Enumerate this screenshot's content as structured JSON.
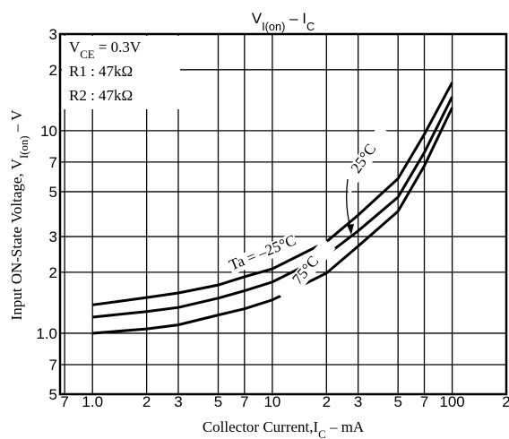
{
  "chart_data": {
    "type": "line",
    "title": [
      {
        "text": "V"
      },
      {
        "text": "I(on)",
        "sub": true
      },
      {
        "text": "  –  I"
      },
      {
        "text": "C",
        "sub": true
      }
    ],
    "xlabel": [
      {
        "text": "Collector Current,I"
      },
      {
        "text": "C",
        "sub": true
      },
      {
        "text": " – mA"
      }
    ],
    "ylabel": [
      {
        "text": "Input ON-State Voltage, V"
      },
      {
        "text": "I(on)",
        "sub": true
      },
      {
        "text": " – V"
      }
    ],
    "annotations": [
      [
        {
          "text": "V"
        },
        {
          "text": "CE",
          "sub": true
        },
        {
          "text": " = 0.3V"
        }
      ],
      [
        {
          "text": "R1 : 47kΩ"
        }
      ],
      [
        {
          "text": "R2 : 47kΩ"
        }
      ]
    ],
    "x": [
      1,
      2,
      3,
      5,
      7,
      10,
      20,
      30,
      50,
      70,
      100
    ],
    "series": [
      {
        "name": "Ta = –25°C",
        "color": "#000000",
        "values": [
          1.38,
          1.5,
          1.58,
          1.73,
          1.9,
          2.08,
          2.83,
          3.83,
          5.8,
          9.6,
          17.3
        ]
      },
      {
        "name": "25°C",
        "color": "#000000",
        "values": [
          1.2,
          1.28,
          1.34,
          1.49,
          1.62,
          1.79,
          2.43,
          3.2,
          4.7,
          7.8,
          14.7
        ]
      },
      {
        "name": "75°C",
        "color": "#000000",
        "values": [
          1.0,
          1.05,
          1.1,
          1.23,
          1.32,
          1.46,
          1.98,
          2.69,
          4.0,
          6.7,
          13
        ]
      }
    ],
    "xscale": "log",
    "yscale": "log",
    "xlim": [
      0.66,
      200
    ],
    "ylim": [
      0.5,
      30
    ],
    "xticks": [
      {
        "value": 0.7,
        "label": "7"
      },
      {
        "value": 1,
        "label": "1.0"
      },
      2,
      3,
      5,
      7,
      10,
      {
        "value": 20,
        "label": "2"
      },
      {
        "value": 30,
        "label": "3"
      },
      {
        "value": 50,
        "label": "5"
      },
      {
        "value": 70,
        "label": "7"
      },
      100,
      {
        "value": 200,
        "label": "2"
      }
    ],
    "yticks": [
      {
        "value": 0.5,
        "label": "5"
      },
      {
        "value": 0.7,
        "label": "7"
      },
      {
        "value": 1,
        "label": "1.0"
      },
      2,
      3,
      5,
      7,
      10,
      {
        "value": 20,
        "label": "2"
      },
      {
        "value": 30,
        "label": "3"
      }
    ],
    "grid": true
  }
}
